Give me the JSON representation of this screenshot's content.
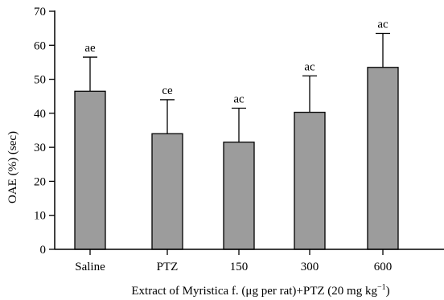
{
  "chart_data": {
    "type": "bar",
    "categories": [
      "Saline",
      "PTZ",
      "150",
      "300",
      "600"
    ],
    "values": [
      46.5,
      34,
      31.5,
      40.3,
      53.5
    ],
    "errors": [
      10,
      10,
      10,
      10.7,
      10
    ],
    "annotations": [
      "ae",
      "ce",
      "ac",
      "ac",
      "ac"
    ],
    "xlabel_prefix": "Extract of Myristica f. (μg per rat)+PTZ (20 mg kg",
    "xlabel_sup": "−1",
    "xlabel_suffix": ")",
    "ylabel": "OAE (%) (sec)",
    "ylim": [
      0,
      70
    ],
    "yticks": [
      0,
      10,
      20,
      30,
      40,
      50,
      60,
      70
    ],
    "ytick_labels": [
      "0",
      "10",
      "20",
      "30",
      "40",
      "50",
      "60",
      "70"
    ],
    "grid": false,
    "bar_color": "#9c9c9c"
  }
}
